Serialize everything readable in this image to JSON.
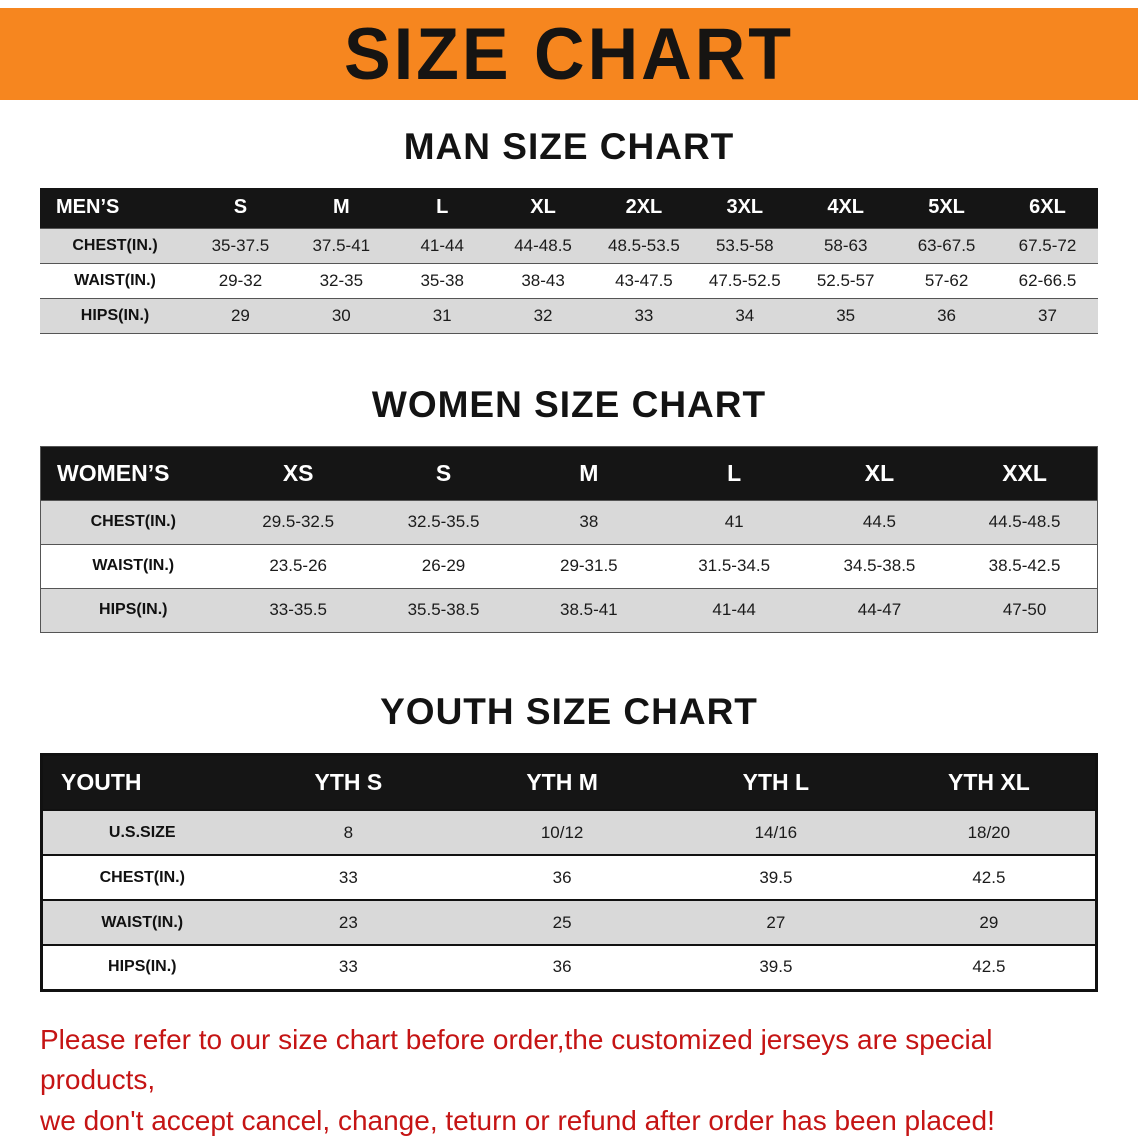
{
  "banner": {
    "title": "SIZE CHART",
    "bg_color": "#F6861F",
    "text_color": "#161412"
  },
  "colors": {
    "accent_orange": "#F6861F",
    "table_header_black": "#151515",
    "row_gray": "#d9d9d9",
    "warning_red": "#c51414"
  },
  "sections": {
    "men": {
      "heading": "MAN SIZE CHART",
      "header": [
        "MEN’S",
        "S",
        "M",
        "L",
        "XL",
        "2XL",
        "3XL",
        "4XL",
        "5XL",
        "6XL"
      ],
      "rows": [
        [
          "CHEST(IN.)",
          "35-37.5",
          "37.5-41",
          "41-44",
          "44-48.5",
          "48.5-53.5",
          "53.5-58",
          "58-63",
          "63-67.5",
          "67.5-72"
        ],
        [
          "WAIST(IN.)",
          "29-32",
          "32-35",
          "35-38",
          "38-43",
          "43-47.5",
          "47.5-52.5",
          "52.5-57",
          "57-62",
          "62-66.5"
        ],
        [
          "HIPS(IN.)",
          "29",
          "30",
          "31",
          "32",
          "33",
          "34",
          "35",
          "36",
          "37"
        ]
      ]
    },
    "women": {
      "heading": "WOMEN SIZE CHART",
      "header": [
        "WOMEN’S",
        "XS",
        "S",
        "M",
        "L",
        "XL",
        "XXL"
      ],
      "rows": [
        [
          "CHEST(IN.)",
          "29.5-32.5",
          "32.5-35.5",
          "38",
          "41",
          "44.5",
          "44.5-48.5"
        ],
        [
          "WAIST(IN.)",
          "23.5-26",
          "26-29",
          "29-31.5",
          "31.5-34.5",
          "34.5-38.5",
          "38.5-42.5"
        ],
        [
          "HIPS(IN.)",
          "33-35.5",
          "35.5-38.5",
          "38.5-41",
          "41-44",
          "44-47",
          "47-50"
        ]
      ]
    },
    "youth": {
      "heading": "YOUTH SIZE CHART",
      "header": [
        "YOUTH",
        "YTH S",
        "YTH M",
        "YTH L",
        "YTH XL"
      ],
      "rows": [
        [
          "U.S.SIZE",
          "8",
          "10/12",
          "14/16",
          "18/20"
        ],
        [
          "CHEST(IN.)",
          "33",
          "36",
          "39.5",
          "42.5"
        ],
        [
          "WAIST(IN.)",
          "23",
          "25",
          "27",
          "29"
        ],
        [
          "HIPS(IN.)",
          "33",
          "36",
          "39.5",
          "42.5"
        ]
      ]
    }
  },
  "footer": {
    "line1": "Please refer to our size chart before order,the customized jerseys are special products,",
    "line2": "we don't accept cancel, change, teturn or refund after order has been placed!"
  }
}
